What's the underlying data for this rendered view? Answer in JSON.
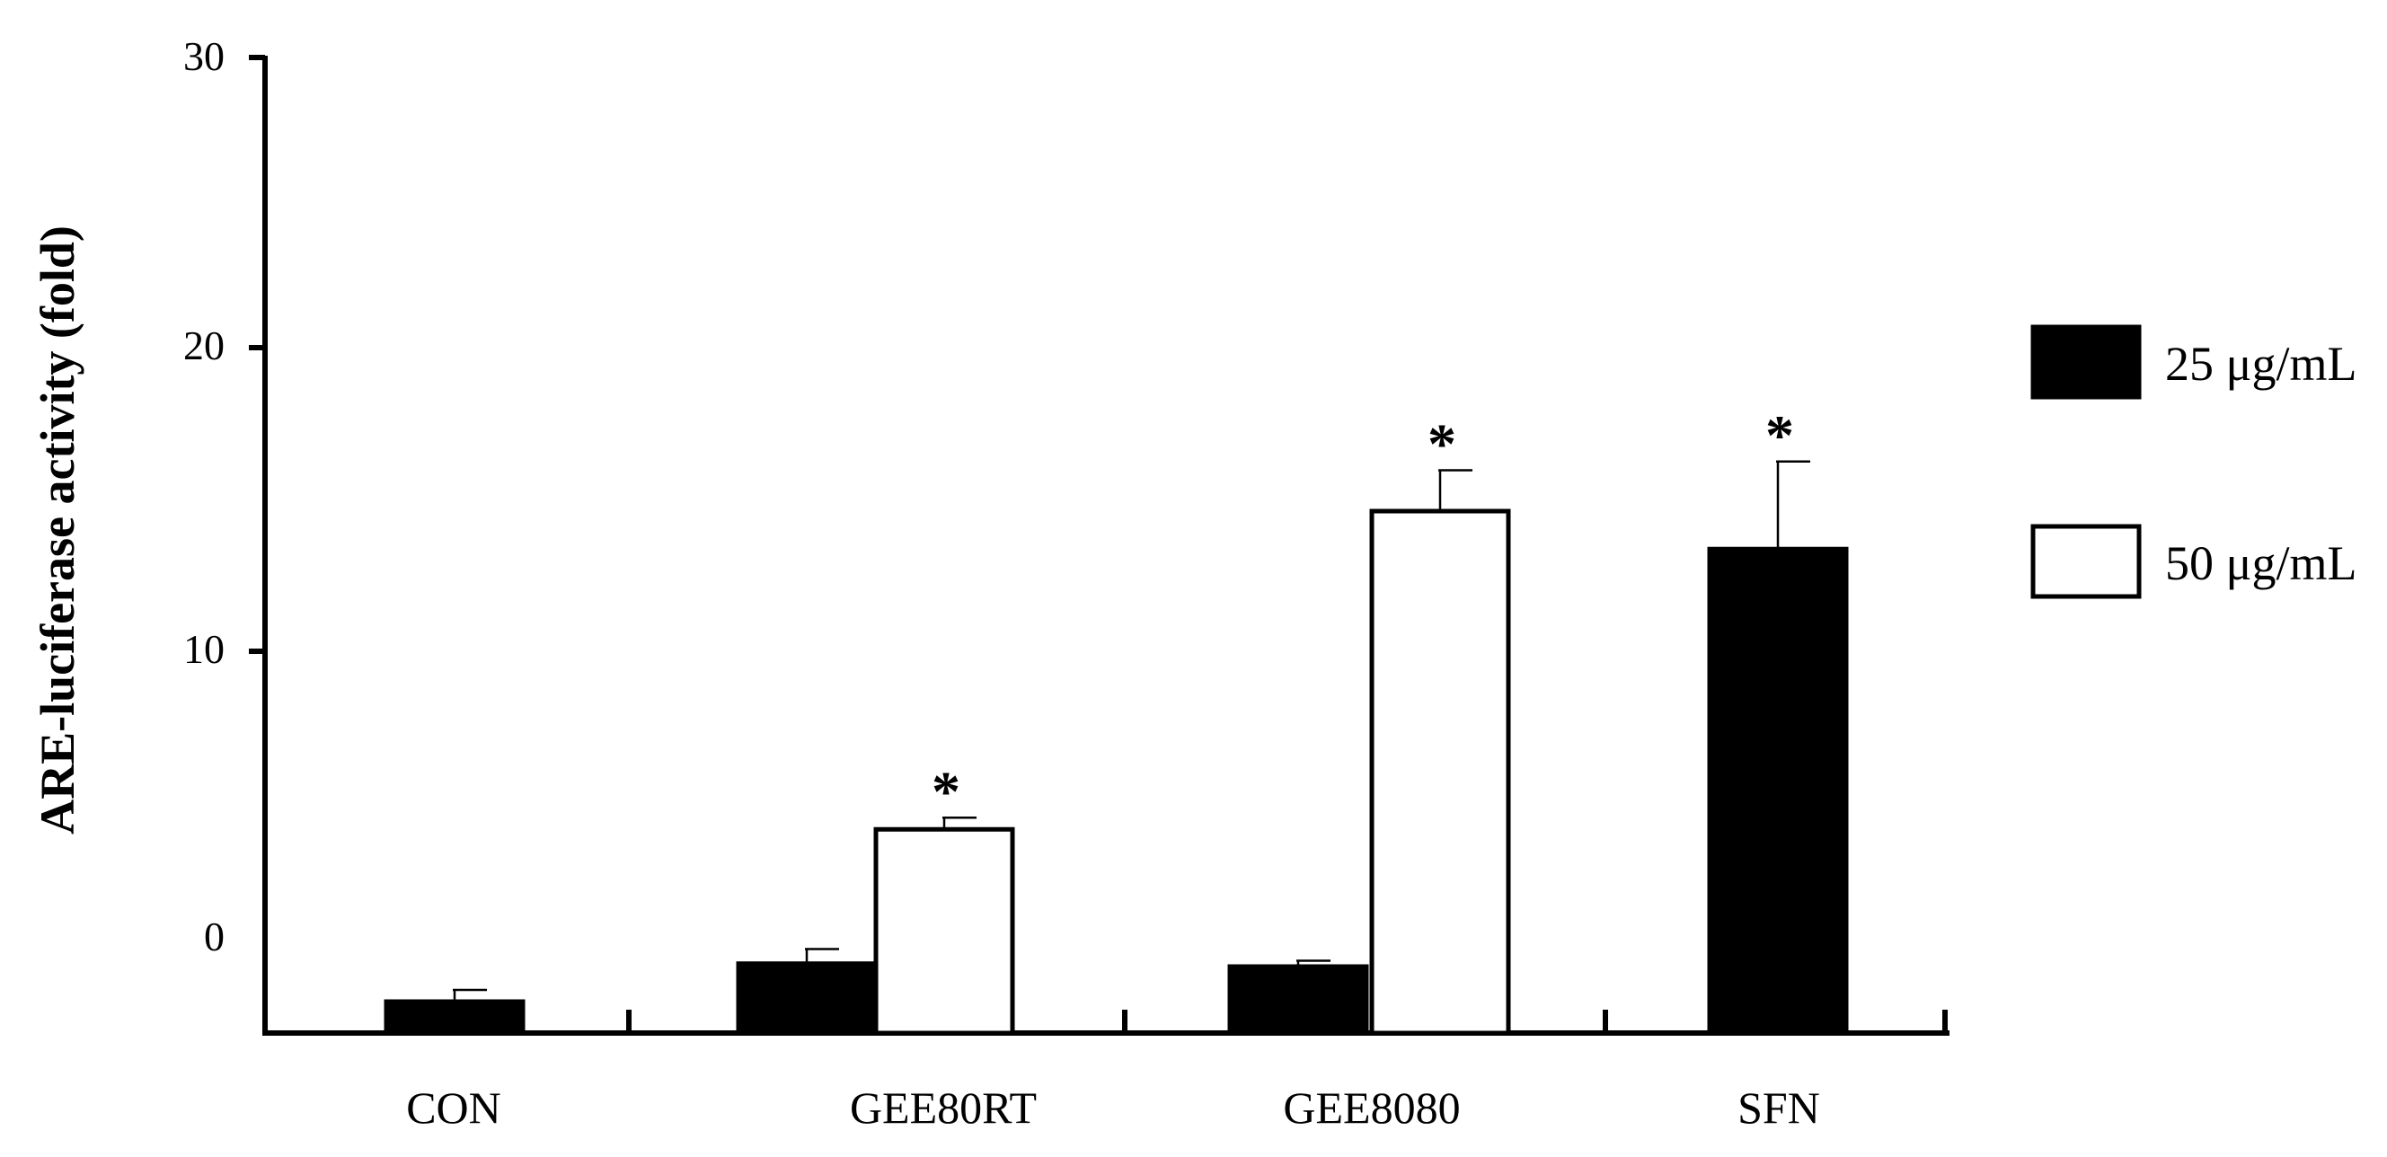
{
  "chart_data": {
    "type": "bar",
    "ylabel": "ARE-luciferase activity (fold)",
    "xlabel": "",
    "ylim": [
      -3,
      30
    ],
    "yticks": [
      0,
      10,
      20,
      30
    ],
    "categories": [
      "CON",
      "GEE80RT",
      "GEE8080",
      "SFN"
    ],
    "legend_position": "right",
    "grid": false,
    "series": [
      {
        "name": "25 μg/mL",
        "color": "#000000",
        "values": [
          -2.0,
          -0.7,
          -0.8,
          13.5
        ],
        "errors": [
          0.4,
          0.5,
          0.2,
          3.0
        ],
        "significant": [
          false,
          false,
          false,
          true
        ]
      },
      {
        "name": "50 μg/mL",
        "color": "#ffffff",
        "values": [
          null,
          3.9,
          14.8,
          null
        ],
        "errors": [
          null,
          0.4,
          1.4,
          null
        ],
        "significant": [
          false,
          true,
          true,
          false
        ]
      }
    ],
    "significance_symbol": "*"
  }
}
